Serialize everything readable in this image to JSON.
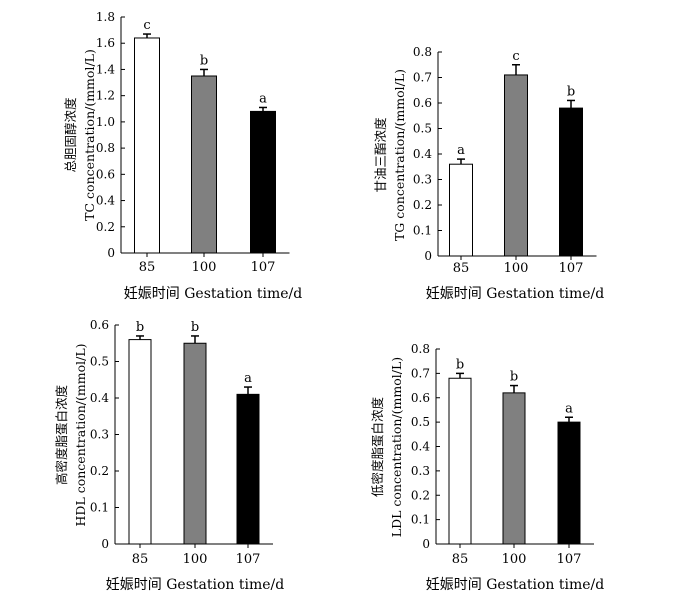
{
  "chart_data": [
    {
      "type": "bar",
      "panel": "TC",
      "categories": [
        "85",
        "100",
        "107"
      ],
      "values": [
        1.64,
        1.35,
        1.08
      ],
      "errors": [
        0.03,
        0.05,
        0.03
      ],
      "significance": [
        "c",
        "b",
        "a"
      ],
      "bar_colors": [
        "#ffffff",
        "#808080",
        "#000000"
      ],
      "xlabel": "妊娠时间 Gestation time/d",
      "ylabel_cn": "总胆固醇浓度",
      "ylabel_en": "TC concentration/(mmol/L)",
      "ylim": [
        0,
        1.8
      ],
      "yticks": [
        "0",
        "0.2",
        "0.4",
        "0.6",
        "0.8",
        "1.0",
        "1.2",
        "1.4",
        "1.6",
        "1.8"
      ]
    },
    {
      "type": "bar",
      "panel": "TG",
      "categories": [
        "85",
        "100",
        "107"
      ],
      "values": [
        0.36,
        0.71,
        0.58
      ],
      "errors": [
        0.02,
        0.04,
        0.03
      ],
      "significance": [
        "a",
        "c",
        "b"
      ],
      "bar_colors": [
        "#ffffff",
        "#808080",
        "#000000"
      ],
      "xlabel": "妊娠时间 Gestation time/d",
      "ylabel_cn": "甘油三酯浓度",
      "ylabel_en": "TG concentration/(mmol/L)",
      "ylim": [
        0,
        0.8
      ],
      "yticks": [
        "0",
        "0.1",
        "0.2",
        "0.3",
        "0.4",
        "0.5",
        "0.6",
        "0.7",
        "0.8"
      ]
    },
    {
      "type": "bar",
      "panel": "HDL",
      "categories": [
        "85",
        "100",
        "107"
      ],
      "values": [
        0.56,
        0.55,
        0.41
      ],
      "errors": [
        0.01,
        0.02,
        0.02
      ],
      "significance": [
        "b",
        "b",
        "a"
      ],
      "bar_colors": [
        "#ffffff",
        "#808080",
        "#000000"
      ],
      "xlabel": "妊娠时间 Gestation time/d",
      "ylabel_cn": "高密度脂蛋白浓度",
      "ylabel_en": "HDL concentration/(mmol/L)",
      "ylim": [
        0,
        0.6
      ],
      "yticks": [
        "0",
        "0.1",
        "0.2",
        "0.3",
        "0.4",
        "0.5",
        "0.6"
      ]
    },
    {
      "type": "bar",
      "panel": "LDL",
      "categories": [
        "85",
        "100",
        "107"
      ],
      "values": [
        0.68,
        0.62,
        0.5
      ],
      "errors": [
        0.02,
        0.03,
        0.02
      ],
      "significance": [
        "b",
        "b",
        "a"
      ],
      "bar_colors": [
        "#ffffff",
        "#808080",
        "#000000"
      ],
      "xlabel": "妊娠时间 Gestation time/d",
      "ylabel_cn": "低密度脂蛋白浓度",
      "ylabel_en": "LDL concentration/(mmol/L)",
      "ylim": [
        0,
        0.8
      ],
      "yticks": [
        "0",
        "0.1",
        "0.2",
        "0.3",
        "0.4",
        "0.5",
        "0.6",
        "0.7",
        "0.8"
      ]
    }
  ]
}
